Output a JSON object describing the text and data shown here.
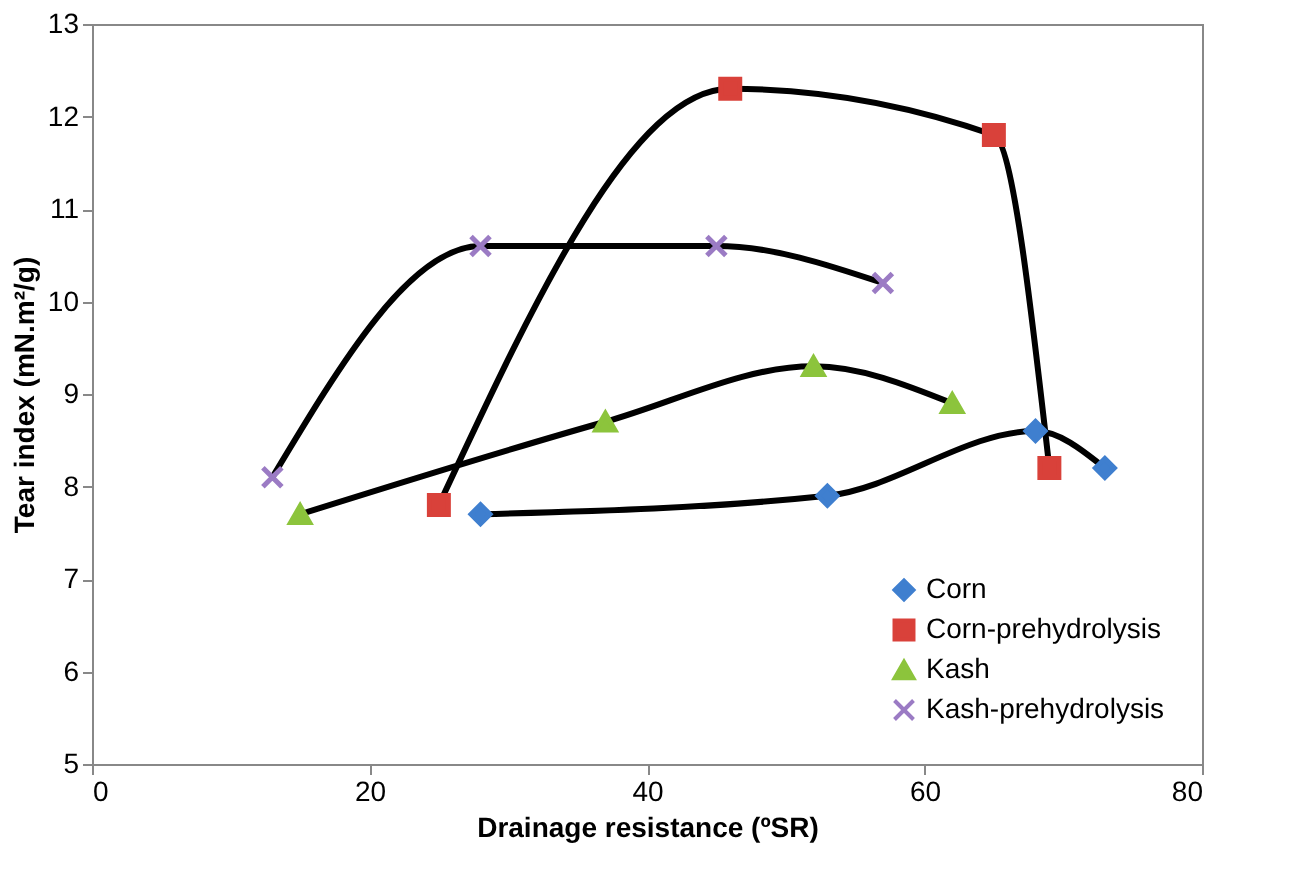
{
  "chart_data": {
    "type": "line",
    "xlabel": "Drainage resistance (ºSR)",
    "ylabel": "Tear index (mN.m²/g)",
    "xlim": [
      0,
      80
    ],
    "xticks": [
      0,
      20,
      40,
      60,
      80
    ],
    "ylim": [
      5,
      13
    ],
    "yticks": [
      5,
      6,
      7,
      8,
      9,
      10,
      11,
      12,
      13
    ],
    "grid": false,
    "legend": "bottom right",
    "line_style": "solid",
    "series": [
      {
        "name": "Corn",
        "color": "#3f7fcf",
        "marker": "diamond",
        "x": [
          28,
          53,
          68,
          73
        ],
        "values": [
          7.7,
          7.9,
          8.6,
          8.2
        ]
      },
      {
        "name": "Corn-prehydrolysis",
        "color": "#d9413a",
        "marker": "square",
        "x": [
          25,
          46,
          65,
          69
        ],
        "values": [
          7.8,
          12.3,
          11.8,
          8.2
        ]
      },
      {
        "name": "Kash",
        "color": "#8cc43c",
        "marker": "triangle",
        "x": [
          15,
          37,
          52,
          62
        ],
        "values": [
          7.7,
          8.7,
          9.3,
          8.9
        ]
      },
      {
        "name": "Kash-prehydrolysis",
        "color": "#9b7bc4",
        "marker": "cross",
        "x": [
          13,
          28,
          45,
          57
        ],
        "values": [
          8.1,
          10.6,
          10.6,
          10.2
        ]
      }
    ]
  }
}
